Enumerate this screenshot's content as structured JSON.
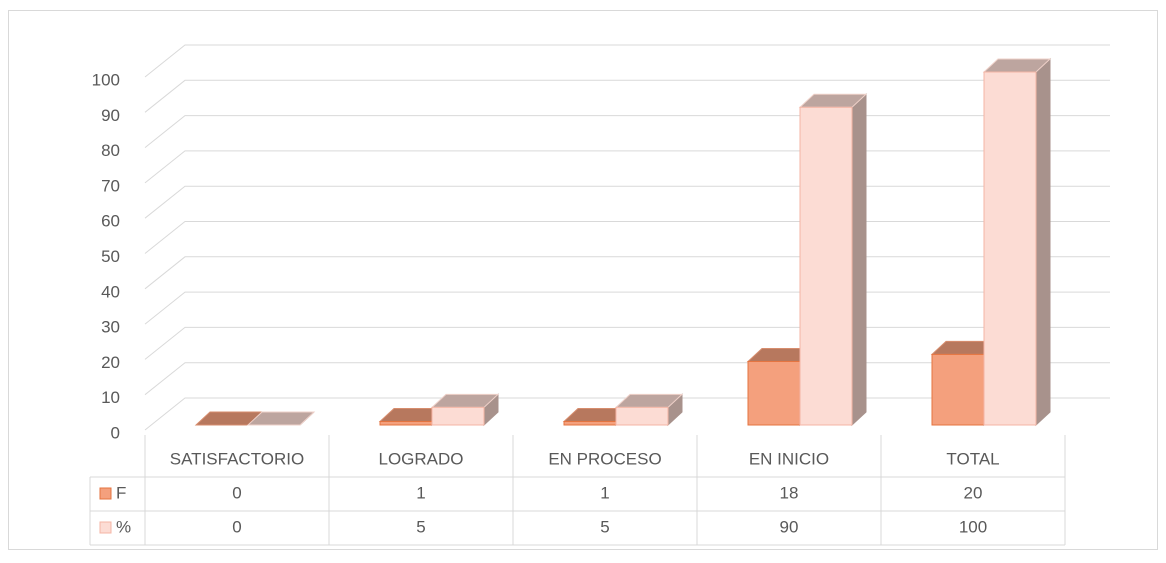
{
  "chart_data": {
    "type": "bar3d",
    "categories": [
      "SATISFACTORIO",
      "LOGRADO",
      "EN PROCESO",
      "EN INICIO",
      "TOTAL"
    ],
    "series": [
      {
        "name": "F",
        "color": "#f4a07d",
        "values": [
          0,
          1,
          1,
          18,
          20
        ]
      },
      {
        "name": "%",
        "color": "#fcdcd4",
        "values": [
          0,
          5,
          5,
          90,
          100
        ]
      }
    ],
    "ylim": [
      0,
      100
    ],
    "yticks": [
      0,
      10,
      20,
      30,
      40,
      50,
      60,
      70,
      80,
      90,
      100
    ],
    "grid": true
  }
}
